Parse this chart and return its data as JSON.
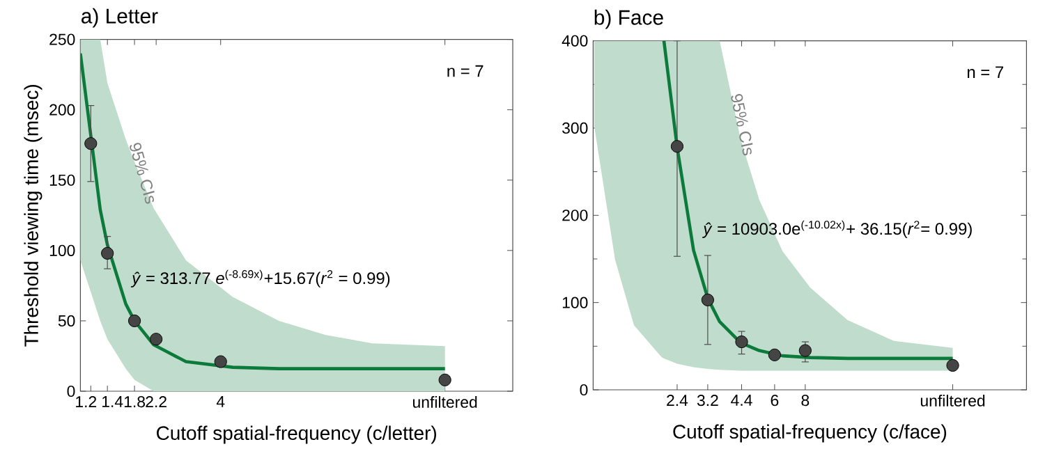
{
  "chart_data": [
    {
      "type": "scatter",
      "title": "a) Letter",
      "xlabel": "Cutoff spatial-frequency (c/letter)",
      "ylabel": "Threshold viewing time (msec)",
      "log": "x",
      "xlim": [
        1.09,
        60
      ],
      "xticks": [
        1.2,
        1.4,
        1.8,
        2.2,
        4,
        {
          "value": 32,
          "label": "unfiltered"
        }
      ],
      "ylim": [
        0,
        250
      ],
      "yticks": [
        0,
        50,
        100,
        150,
        200,
        250
      ],
      "annotations": [
        "n = 7",
        "95% CIs",
        "*ŷ* = 313.77 *e*$^{(-8.69x)}$+15.67(*r*$^{2}$ = 0.99)"
      ],
      "series": [
        {
          "type": "line",
          "marker": "none",
          "color": "#0b7a3b",
          "x": [
            1.09,
            1.31,
            1.4,
            1.66,
            1.8,
            2.15,
            2.9,
            4.47,
            6.87,
            10.6,
            16.3,
            32
          ],
          "values": [
            240,
            129,
            104,
            62,
            50,
            33,
            21,
            17,
            16,
            16,
            16,
            16
          ],
          "upper": [
            250,
            250,
            219,
            179,
            163,
            130,
            93,
            67,
            50,
            40,
            34,
            32
          ],
          "lower": [
            93,
            50,
            37,
            16,
            8,
            0,
            0,
            0,
            0,
            0,
            0,
            0
          ]
        },
        {
          "color": "#454545",
          "x": [
            1.2,
            1.4,
            1.8,
            2.2,
            4,
            32
          ],
          "values": [
            176,
            98,
            50,
            37,
            21,
            8
          ],
          "errors": [
            [
              149,
              203
            ],
            [
              87,
              110
            ],
            null,
            null,
            null,
            null
          ]
        }
      ]
    },
    {
      "type": "scatter",
      "title": "b) Face",
      "xlabel": "Cutoff spatial-frequency (c/face)",
      "log": "x",
      "xlim": [
        1.09,
        64
      ],
      "xticks": [
        2.4,
        3.2,
        4.4,
        6,
        8,
        {
          "value": 32,
          "label": "unfiltered"
        }
      ],
      "ylim": [
        0,
        400
      ],
      "yticks": [
        0,
        100,
        200,
        300,
        400
      ],
      "annotations": [
        "n = 7",
        "95% CIs",
        "*ŷ* = 10903.0e$^{(-10.02x)}$+ 36.15(*r*$^{2}$= 0.99)"
      ],
      "series": [
        {
          "type": "line",
          "marker": "none",
          "color": "#0b7a3b",
          "x": [
            1.1,
            1.34,
            1.6,
            2.08,
            2.12,
            2.4,
            2.8,
            3.2,
            3.58,
            4.36,
            5.19,
            6.46,
            8.39,
            11.9,
            18.4,
            32
          ],
          "values": [
            null,
            null,
            null,
            null,
            400,
            278,
            160,
            105,
            78,
            54,
            45,
            39,
            37,
            36,
            36,
            36
          ],
          "upper": [
            400,
            400,
            400,
            400,
            400,
            400,
            400,
            400,
            400,
            287,
            218,
            159,
            117,
            80,
            56,
            48
          ],
          "lower": [
            303,
            149,
            74,
            37,
            36,
            30,
            26,
            24,
            23,
            22,
            22,
            22,
            22,
            22,
            22,
            22
          ]
        },
        {
          "color": "#454545",
          "x": [
            2.4,
            3.2,
            4.4,
            6,
            8,
            32
          ],
          "values": [
            279,
            103,
            55,
            40,
            45,
            28
          ],
          "errors": [
            [
              153,
              400
            ],
            [
              52,
              154
            ],
            [
              41,
              67
            ],
            null,
            [
              32,
              55
            ],
            null
          ]
        }
      ]
    }
  ]
}
